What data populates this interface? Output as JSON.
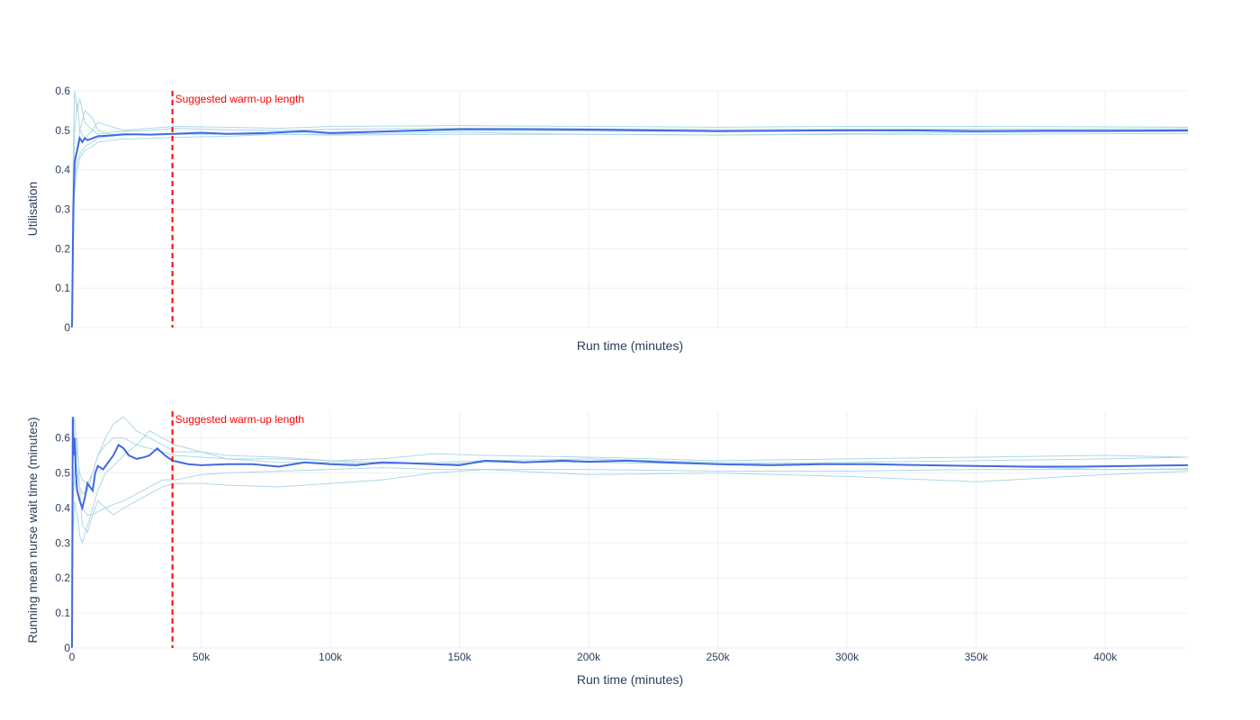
{
  "colors": {
    "replication": "#add8e6",
    "mean": "#4169e1",
    "warmup": "#ff0000",
    "grid": "#ebf0f8",
    "text": "#2a3f5f"
  },
  "chart_data": [
    {
      "type": "line",
      "xlabel": "Run time (minutes)",
      "ylabel": "Utilisation",
      "xlim": [
        0,
        432000
      ],
      "ylim": [
        0,
        0.6
      ],
      "x_ticks": [
        0,
        50000,
        100000,
        150000,
        200000,
        250000,
        300000,
        350000,
        400000
      ],
      "x_tick_labels": [
        "",
        "",
        "",
        "",
        "",
        "",
        "",
        "",
        ""
      ],
      "y_ticks": [
        0,
        0.1,
        0.2,
        0.3,
        0.4,
        0.5,
        0.6
      ],
      "y_tick_labels": [
        "0",
        "0.1",
        "0.2",
        "0.3",
        "0.4",
        "0.5",
        "0.6"
      ],
      "grid": true,
      "warmup": {
        "x": 38880,
        "label": "Suggested warm-up length"
      },
      "mean": {
        "x": [
          0,
          500,
          1000,
          2000,
          3000,
          4000,
          5000,
          6000,
          8000,
          10000,
          15000,
          20000,
          25000,
          30000,
          38880,
          50000,
          60000,
          75000,
          90000,
          100000,
          125000,
          150000,
          175000,
          200000,
          225000,
          250000,
          275000,
          300000,
          325000,
          350000,
          375000,
          400000,
          432000
        ],
        "y": [
          0.0,
          0.3,
          0.42,
          0.45,
          0.48,
          0.47,
          0.48,
          0.475,
          0.48,
          0.485,
          0.487,
          0.49,
          0.49,
          0.489,
          0.491,
          0.494,
          0.491,
          0.493,
          0.498,
          0.493,
          0.498,
          0.503,
          0.503,
          0.502,
          0.5,
          0.498,
          0.499,
          0.5,
          0.5,
          0.498,
          0.499,
          0.499,
          0.5
        ]
      },
      "replications": [
        {
          "x": [
            0,
            500,
            1000,
            2000,
            3000,
            5000,
            8000,
            10000,
            15000,
            20000,
            30000,
            40000,
            60000,
            80000,
            100000,
            150000,
            200000,
            250000,
            300000,
            350000,
            432000
          ],
          "y": [
            0.0,
            0.45,
            0.6,
            0.55,
            0.58,
            0.52,
            0.5,
            0.52,
            0.51,
            0.5,
            0.505,
            0.51,
            0.508,
            0.505,
            0.51,
            0.512,
            0.51,
            0.508,
            0.51,
            0.51,
            0.508
          ]
        },
        {
          "x": [
            0,
            500,
            1000,
            2000,
            3000,
            5000,
            8000,
            10000,
            15000,
            20000,
            30000,
            40000,
            60000,
            80000,
            100000,
            150000,
            200000,
            250000,
            300000,
            350000,
            432000
          ],
          "y": [
            0.0,
            0.2,
            0.35,
            0.4,
            0.43,
            0.45,
            0.46,
            0.47,
            0.475,
            0.478,
            0.48,
            0.482,
            0.485,
            0.49,
            0.49,
            0.495,
            0.49,
            0.488,
            0.492,
            0.495,
            0.497
          ]
        },
        {
          "x": [
            0,
            500,
            1000,
            2000,
            3000,
            5000,
            8000,
            10000,
            15000,
            20000,
            30000,
            40000,
            60000,
            80000,
            100000,
            150000,
            200000,
            250000,
            300000,
            350000,
            432000
          ],
          "y": [
            0.0,
            0.3,
            0.5,
            0.57,
            0.5,
            0.48,
            0.5,
            0.49,
            0.495,
            0.497,
            0.5,
            0.505,
            0.502,
            0.5,
            0.503,
            0.505,
            0.504,
            0.502,
            0.503,
            0.503,
            0.504
          ]
        },
        {
          "x": [
            0,
            500,
            1000,
            2000,
            3000,
            5000,
            8000,
            10000,
            15000,
            20000,
            30000,
            40000,
            60000,
            80000,
            100000,
            150000,
            200000,
            250000,
            300000,
            350000,
            432000
          ],
          "y": [
            0.0,
            0.35,
            0.4,
            0.45,
            0.5,
            0.55,
            0.53,
            0.5,
            0.49,
            0.49,
            0.49,
            0.49,
            0.492,
            0.495,
            0.495,
            0.5,
            0.498,
            0.497,
            0.5,
            0.498,
            0.497
          ]
        },
        {
          "x": [
            0,
            500,
            1000,
            2000,
            3000,
            5000,
            8000,
            10000,
            15000,
            20000,
            30000,
            40000,
            60000,
            80000,
            100000,
            150000,
            200000,
            250000,
            300000,
            350000,
            432000
          ],
          "y": [
            0.0,
            0.3,
            0.38,
            0.42,
            0.44,
            0.46,
            0.47,
            0.48,
            0.485,
            0.488,
            0.49,
            0.49,
            0.49,
            0.49,
            0.488,
            0.49,
            0.49,
            0.488,
            0.49,
            0.49,
            0.492
          ]
        }
      ]
    },
    {
      "type": "line",
      "xlabel": "Run time (minutes)",
      "ylabel": "Running mean nurse wait time (minutes)",
      "xlim": [
        0,
        432000
      ],
      "ylim": [
        0,
        0.676
      ],
      "x_ticks": [
        0,
        50000,
        100000,
        150000,
        200000,
        250000,
        300000,
        350000,
        400000
      ],
      "x_tick_labels": [
        "0",
        "50k",
        "100k",
        "150k",
        "200k",
        "250k",
        "300k",
        "350k",
        "400k"
      ],
      "y_ticks": [
        0,
        0.1,
        0.2,
        0.3,
        0.4,
        0.5,
        0.6
      ],
      "y_tick_labels": [
        "0",
        "0.1",
        "0.2",
        "0.3",
        "0.4",
        "0.5",
        "0.6"
      ],
      "grid": true,
      "warmup": {
        "x": 38880,
        "label": "Suggested warm-up length"
      },
      "mean": {
        "x": [
          0,
          300,
          700,
          1000,
          1500,
          2000,
          3000,
          4000,
          5000,
          6000,
          7000,
          8000,
          9000,
          10000,
          12000,
          14000,
          16000,
          18000,
          20000,
          22000,
          25000,
          28000,
          30000,
          33000,
          36000,
          38880,
          45000,
          50000,
          60000,
          70000,
          80000,
          90000,
          100000,
          110000,
          120000,
          130000,
          140000,
          150000,
          160000,
          175000,
          190000,
          200000,
          215000,
          230000,
          250000,
          270000,
          290000,
          310000,
          330000,
          350000,
          370000,
          390000,
          410000,
          432000
        ],
        "y": [
          0.0,
          0.66,
          0.55,
          0.6,
          0.5,
          0.45,
          0.42,
          0.4,
          0.43,
          0.47,
          0.46,
          0.45,
          0.5,
          0.52,
          0.51,
          0.53,
          0.55,
          0.58,
          0.57,
          0.55,
          0.54,
          0.545,
          0.55,
          0.57,
          0.55,
          0.535,
          0.525,
          0.522,
          0.525,
          0.525,
          0.518,
          0.53,
          0.525,
          0.522,
          0.53,
          0.528,
          0.525,
          0.522,
          0.535,
          0.53,
          0.535,
          0.532,
          0.535,
          0.53,
          0.525,
          0.522,
          0.525,
          0.525,
          0.522,
          0.52,
          0.518,
          0.518,
          0.52,
          0.522
        ]
      },
      "replications": [
        {
          "x": [
            0,
            300,
            1000,
            2000,
            3000,
            4000,
            6000,
            8000,
            10000,
            13000,
            16000,
            20000,
            25000,
            30000,
            35000,
            40000,
            50000,
            60000,
            80000,
            100000,
            120000,
            140000,
            160000,
            200000,
            250000,
            300000,
            350000,
            400000,
            432000
          ],
          "y": [
            0.0,
            0.4,
            0.5,
            0.6,
            0.45,
            0.35,
            0.33,
            0.38,
            0.42,
            0.4,
            0.38,
            0.4,
            0.42,
            0.44,
            0.46,
            0.47,
            0.47,
            0.465,
            0.46,
            0.47,
            0.48,
            0.5,
            0.51,
            0.495,
            0.5,
            0.49,
            0.475,
            0.495,
            0.505
          ]
        },
        {
          "x": [
            0,
            300,
            1000,
            2000,
            3000,
            4000,
            6000,
            8000,
            10000,
            13000,
            16000,
            20000,
            25000,
            30000,
            35000,
            40000,
            50000,
            60000,
            80000,
            100000,
            120000,
            140000,
            160000,
            200000,
            250000,
            300000,
            350000,
            400000,
            432000
          ],
          "y": [
            0.0,
            0.62,
            0.66,
            0.55,
            0.5,
            0.48,
            0.47,
            0.5,
            0.55,
            0.6,
            0.64,
            0.66,
            0.62,
            0.6,
            0.58,
            0.56,
            0.56,
            0.55,
            0.545,
            0.535,
            0.54,
            0.555,
            0.55,
            0.545,
            0.535,
            0.54,
            0.545,
            0.55,
            0.545
          ]
        },
        {
          "x": [
            0,
            300,
            1000,
            2000,
            3000,
            4000,
            6000,
            8000,
            10000,
            13000,
            16000,
            20000,
            25000,
            30000,
            35000,
            40000,
            50000,
            60000,
            80000,
            100000,
            120000,
            140000,
            160000,
            200000,
            250000,
            300000,
            350000,
            400000,
            432000
          ],
          "y": [
            0.0,
            0.3,
            0.42,
            0.38,
            0.32,
            0.3,
            0.35,
            0.4,
            0.45,
            0.5,
            0.52,
            0.55,
            0.58,
            0.62,
            0.6,
            0.58,
            0.56,
            0.54,
            0.53,
            0.53,
            0.525,
            0.53,
            0.535,
            0.54,
            0.53,
            0.525,
            0.52,
            0.51,
            0.51
          ]
        },
        {
          "x": [
            0,
            300,
            1000,
            2000,
            3000,
            4000,
            6000,
            8000,
            10000,
            13000,
            16000,
            20000,
            25000,
            30000,
            35000,
            40000,
            50000,
            60000,
            80000,
            100000,
            120000,
            140000,
            160000,
            200000,
            250000,
            300000,
            350000,
            400000,
            432000
          ],
          "y": [
            0.0,
            0.58,
            0.6,
            0.5,
            0.46,
            0.44,
            0.45,
            0.5,
            0.55,
            0.58,
            0.6,
            0.6,
            0.58,
            0.57,
            0.56,
            0.55,
            0.545,
            0.54,
            0.54,
            0.535,
            0.53,
            0.525,
            0.53,
            0.53,
            0.525,
            0.53,
            0.535,
            0.54,
            0.545
          ]
        },
        {
          "x": [
            0,
            300,
            1000,
            2000,
            3000,
            4000,
            6000,
            8000,
            10000,
            13000,
            16000,
            20000,
            25000,
            30000,
            35000,
            40000,
            50000,
            60000,
            80000,
            100000,
            120000,
            140000,
            160000,
            200000,
            250000,
            300000,
            350000,
            400000,
            432000
          ],
          "y": [
            0.0,
            0.45,
            0.48,
            0.44,
            0.42,
            0.4,
            0.38,
            0.38,
            0.39,
            0.4,
            0.41,
            0.42,
            0.44,
            0.46,
            0.48,
            0.48,
            0.495,
            0.5,
            0.505,
            0.51,
            0.515,
            0.51,
            0.51,
            0.51,
            0.505,
            0.505,
            0.51,
            0.51,
            0.512
          ]
        }
      ]
    }
  ]
}
